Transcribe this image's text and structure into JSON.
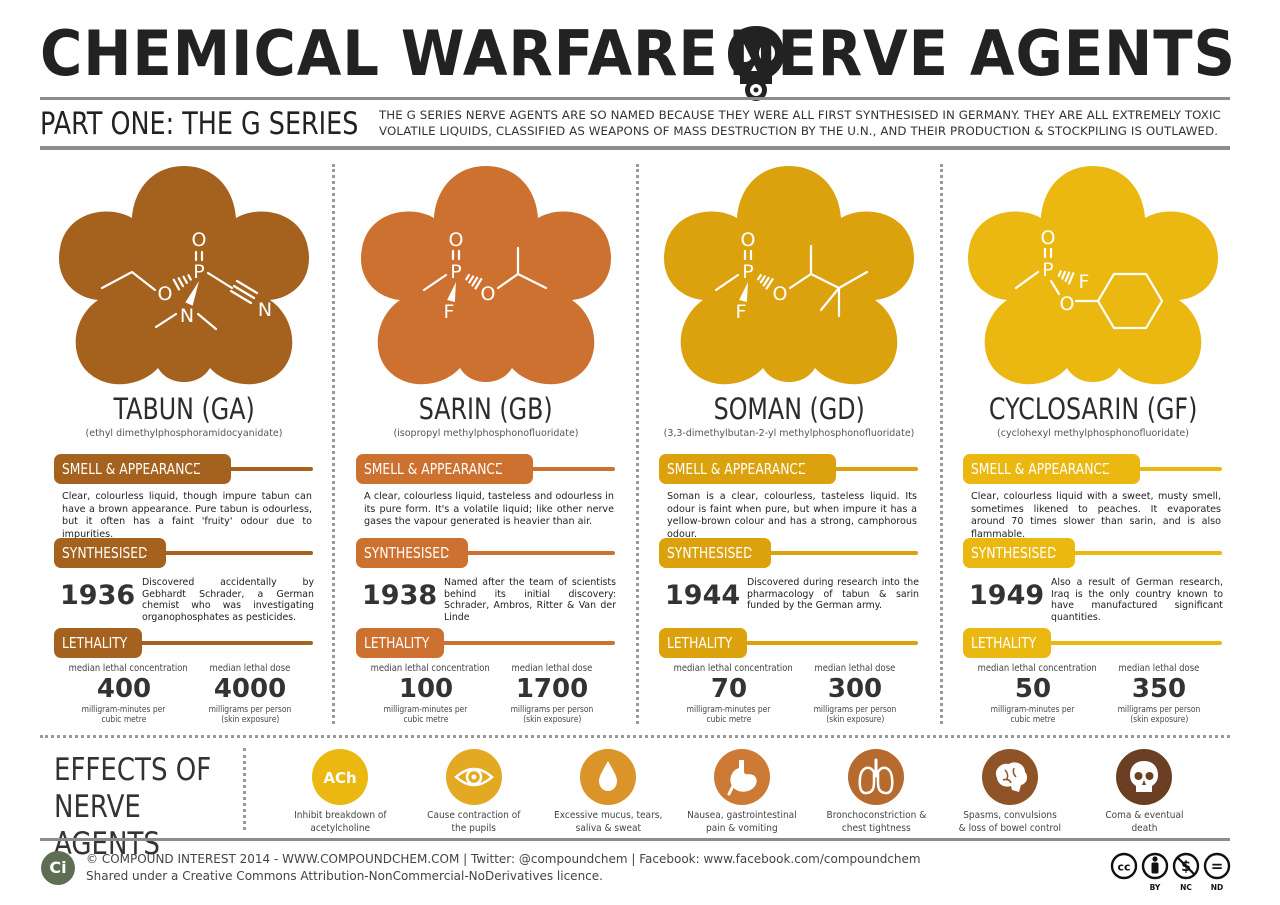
{
  "header": {
    "title_left": "CHEMICAL WARFARE",
    "title_right": "NERVE AGENTS",
    "part_title": "PART ONE: THE G SERIES",
    "intro": "THE G SERIES NERVE AGENTS ARE SO NAMED BECAUSE THEY WERE ALL FIRST SYNTHESISED IN GERMANY. THEY ARE ALL EXTREMELY TOXIC VOLATILE LIQUIDS, CLASSIFIED AS WEAPONS OF MASS DESTRUCTION BY THE U.N., AND THEIR PRODUCTION & STOCKPILING IS OUTLAWED.",
    "icon": "skull-gasmask-icon"
  },
  "labels": {
    "smell": "SMELL & APPEARANCE",
    "synth": "SYNTHESISED",
    "lethality": "LETHALITY",
    "lc_caption": "median lethal concentration",
    "ld_caption": "median lethal dose",
    "lc_unit_1": "milligram-minutes per",
    "lc_unit_2": "cubic metre",
    "ld_unit_1": "milligrams per person",
    "ld_unit_2": "(skin exposure)"
  },
  "agents": [
    {
      "name": "TABUN (GA)",
      "iupac": "(ethyl dimethylphosphoramidocyanidate)",
      "color": "#A5621E",
      "atoms": {
        "o_top": "O",
        "p": "P",
        "o_side": "O",
        "n_amine": "N",
        "n_nitrile": "N"
      },
      "smell": "Clear, colourless liquid, though impure tabun can have a brown appearance. Pure tabun is odourless, but it often has a faint 'fruity' odour due to impurities.",
      "year": "1936",
      "synth_text": "Discovered accidentally by Gebhardt Schrader, a German chemist who was investigating organophosphates as pesticides.",
      "lc": "400",
      "ld": "4000"
    },
    {
      "name": "SARIN (GB)",
      "iupac": "(isopropyl methylphosphonofluoridate)",
      "color": "#CD7131",
      "atoms": {
        "o_top": "O",
        "p": "P",
        "o_side": "O",
        "f": "F"
      },
      "smell": "A clear, colourless liquid, tasteless and odourless in its pure form. It's a volatile liquid; like other nerve gases the vapour generated is heavier than air.",
      "year": "1938",
      "synth_text": "Named after the team of scientists behind its initial discovery: Schrader, Ambros, Ritter & Van der Linde",
      "lc": "100",
      "ld": "1700"
    },
    {
      "name": "SOMAN (GD)",
      "iupac": "(3,3-dimethylbutan-2-yl methylphosphonofluoridate)",
      "color": "#DBA20E",
      "atoms": {
        "o_top": "O",
        "p": "P",
        "o_side": "O",
        "f": "F"
      },
      "smell": "Soman is a clear, colourless, tasteless liquid. Its odour is faint when pure, but when impure it has a yellow-brown colour and has a strong, camphorous odour.",
      "year": "1944",
      "synth_text": "Discovered during research into the pharmacology of tabun & sarin funded by the German army.",
      "lc": "70",
      "ld": "300"
    },
    {
      "name": "CYCLOSARIN (GF)",
      "iupac": "(cyclohexyl methylphosphonofluoridate)",
      "color": "#EBB811",
      "atoms": {
        "o_top": "O",
        "p": "P",
        "o_side": "O",
        "f": "F"
      },
      "smell": "Clear, colourless liquid with a sweet, musty smell, sometimes likened to peaches. It evaporates around 70 times slower than sarin, and is also flammable.",
      "year": "1949",
      "synth_text": "Also a result of German research, Iraq is the only country known to have manufactured significant quantities.",
      "lc": "50",
      "ld": "350"
    }
  ],
  "effects": {
    "title_1": "EFFECTS OF",
    "title_2": "NERVE AGENTS",
    "items": [
      {
        "icon": "ach-icon",
        "icon_text": "ACh",
        "color": "#EBB811",
        "line1": "Inhibit breakdown of",
        "line2": "acetylcholine"
      },
      {
        "icon": "eye-icon",
        "color": "#E3A923",
        "line1": "Cause contraction of",
        "line2": "the pupils"
      },
      {
        "icon": "droplet-icon",
        "color": "#DB9427",
        "line1": "Excessive mucus, tears,",
        "line2": "saliva & sweat"
      },
      {
        "icon": "stomach-icon",
        "color": "#CC7A35",
        "line1": "Nausea, gastrointestinal",
        "line2": "pain & vomiting"
      },
      {
        "icon": "lungs-icon",
        "color": "#B66A2D",
        "line1": "Bronchoconstriction &",
        "line2": "chest tightness"
      },
      {
        "icon": "brain-icon",
        "color": "#8E5427",
        "line1": "Spasms, convulsions",
        "line2": "& loss of bowel control"
      },
      {
        "icon": "skull-icon",
        "color": "#6A3F23",
        "line1": "Coma & eventual",
        "line2": "death"
      }
    ]
  },
  "footer": {
    "logo": "Ci",
    "line1": "© COMPOUND INTEREST 2014 - WWW.COMPOUNDCHEM.COM | Twitter: @compoundchem | Facebook: www.facebook.com/compoundchem",
    "line2": "Shared under a Creative Commons Attribution-NonCommercial-NoDerivatives licence.",
    "cc": {
      "by": "BY",
      "nc": "NC",
      "nd": "ND",
      "cc_text": "cc",
      "nc_symbol": "$",
      "nd_symbol": "="
    }
  }
}
